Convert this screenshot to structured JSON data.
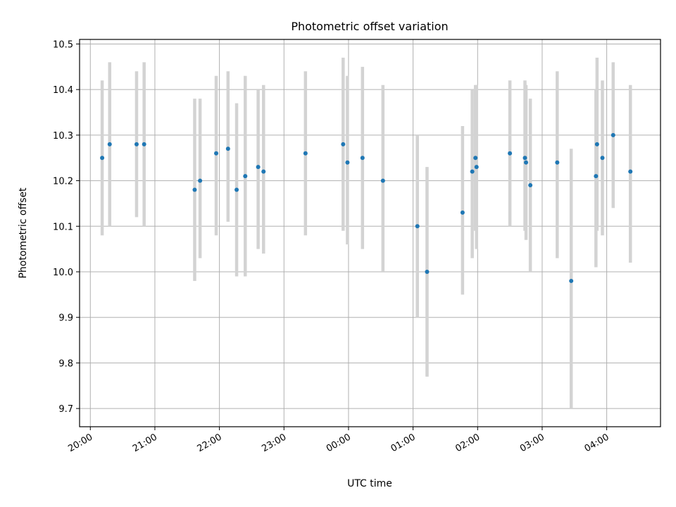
{
  "chart_data": {
    "type": "scatter",
    "title": "Photometric offset variation",
    "xlabel": "UTC time",
    "ylabel": "Photometric offset",
    "xlim": [
      "19:50",
      "04:50"
    ],
    "ylim": [
      9.66,
      10.51
    ],
    "grid": true,
    "x_ticks": [
      "20:00",
      "21:00",
      "22:00",
      "23:00",
      "00:00",
      "01:00",
      "02:00",
      "03:00",
      "04:00"
    ],
    "y_ticks": [
      "9.7",
      "9.8",
      "9.9",
      "10.0",
      "10.1",
      "10.2",
      "10.3",
      "10.4",
      "10.5"
    ],
    "colors": {
      "marker": "#1f77b4",
      "errorbar": "#d3d3d3",
      "grid": "#b0b0b0"
    },
    "series": [
      {
        "points": [
          {
            "x": "20:11",
            "y": 10.25,
            "yerr_low": 10.08,
            "yerr_high": 10.42
          },
          {
            "x": "20:18",
            "y": 10.28,
            "yerr_low": 10.1,
            "yerr_high": 10.46
          },
          {
            "x": "20:43",
            "y": 10.28,
            "yerr_low": 10.12,
            "yerr_high": 10.44
          },
          {
            "x": "20:50",
            "y": 10.28,
            "yerr_low": 10.1,
            "yerr_high": 10.46
          },
          {
            "x": "21:37",
            "y": 10.18,
            "yerr_low": 9.98,
            "yerr_high": 10.38
          },
          {
            "x": "21:42",
            "y": 10.2,
            "yerr_low": 10.03,
            "yerr_high": 10.38
          },
          {
            "x": "21:57",
            "y": 10.26,
            "yerr_low": 10.08,
            "yerr_high": 10.43
          },
          {
            "x": "22:08",
            "y": 10.27,
            "yerr_low": 10.11,
            "yerr_high": 10.44
          },
          {
            "x": "22:16",
            "y": 10.18,
            "yerr_low": 9.99,
            "yerr_high": 10.37
          },
          {
            "x": "22:24",
            "y": 10.21,
            "yerr_low": 9.99,
            "yerr_high": 10.43
          },
          {
            "x": "22:36",
            "y": 10.23,
            "yerr_low": 10.05,
            "yerr_high": 10.4
          },
          {
            "x": "22:41",
            "y": 10.22,
            "yerr_low": 10.04,
            "yerr_high": 10.41
          },
          {
            "x": "23:20",
            "y": 10.26,
            "yerr_low": 10.08,
            "yerr_high": 10.44
          },
          {
            "x": "23:55",
            "y": 10.28,
            "yerr_low": 10.09,
            "yerr_high": 10.47
          },
          {
            "x": "23:59",
            "y": 10.24,
            "yerr_low": 10.06,
            "yerr_high": 10.43
          },
          {
            "x": "00:13",
            "y": 10.25,
            "yerr_low": 10.05,
            "yerr_high": 10.45
          },
          {
            "x": "00:32",
            "y": 10.2,
            "yerr_low": 10.0,
            "yerr_high": 10.41
          },
          {
            "x": "01:04",
            "y": 10.1,
            "yerr_low": 9.9,
            "yerr_high": 10.3
          },
          {
            "x": "01:13",
            "y": 10.0,
            "yerr_low": 9.77,
            "yerr_high": 10.23
          },
          {
            "x": "01:46",
            "y": 10.13,
            "yerr_low": 9.95,
            "yerr_high": 10.32
          },
          {
            "x": "01:55",
            "y": 10.22,
            "yerr_low": 10.03,
            "yerr_high": 10.4
          },
          {
            "x": "01:58",
            "y": 10.25,
            "yerr_low": 10.09,
            "yerr_high": 10.41
          },
          {
            "x": "01:59",
            "y": 10.23,
            "yerr_low": 10.05,
            "yerr_high": 10.41
          },
          {
            "x": "02:30",
            "y": 10.26,
            "yerr_low": 10.1,
            "yerr_high": 10.42
          },
          {
            "x": "02:44",
            "y": 10.25,
            "yerr_low": 10.09,
            "yerr_high": 10.42
          },
          {
            "x": "02:45",
            "y": 10.24,
            "yerr_low": 10.07,
            "yerr_high": 10.41
          },
          {
            "x": "02:49",
            "y": 10.19,
            "yerr_low": 10.0,
            "yerr_high": 10.38
          },
          {
            "x": "03:14",
            "y": 10.24,
            "yerr_low": 10.03,
            "yerr_high": 10.44
          },
          {
            "x": "03:27",
            "y": 9.98,
            "yerr_low": 9.7,
            "yerr_high": 10.27
          },
          {
            "x": "03:50",
            "y": 10.21,
            "yerr_low": 10.01,
            "yerr_high": 10.4
          },
          {
            "x": "03:51",
            "y": 10.28,
            "yerr_low": 10.09,
            "yerr_high": 10.47
          },
          {
            "x": "03:56",
            "y": 10.25,
            "yerr_low": 10.08,
            "yerr_high": 10.42
          },
          {
            "x": "04:06",
            "y": 10.3,
            "yerr_low": 10.14,
            "yerr_high": 10.46
          },
          {
            "x": "04:22",
            "y": 10.22,
            "yerr_low": 10.02,
            "yerr_high": 10.41
          }
        ]
      }
    ]
  }
}
